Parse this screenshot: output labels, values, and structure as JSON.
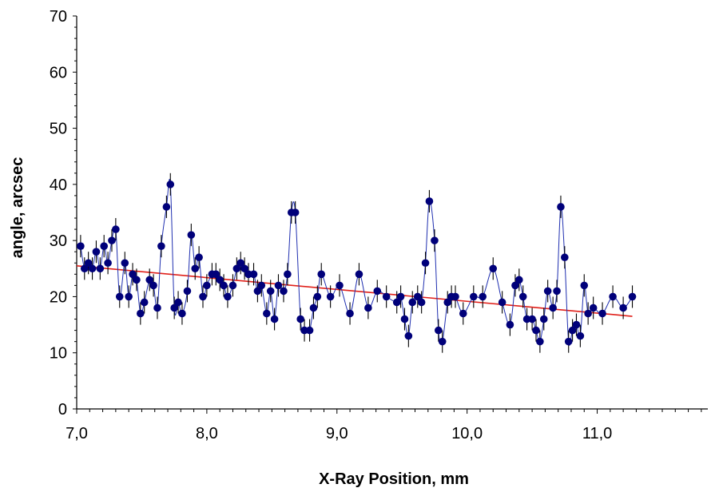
{
  "chart_data": {
    "type": "scatter",
    "title": "",
    "xlabel": "X-Ray Position, mm",
    "ylabel": "angle, arcsec",
    "xlim": [
      7.0,
      11.85
    ],
    "ylim": [
      0,
      70
    ],
    "x_ticks": [
      7.0,
      8.0,
      9.0,
      10.0,
      11.0
    ],
    "x_tick_labels": [
      "7,0",
      "8,0",
      "9,0",
      "10,0",
      "11,0"
    ],
    "y_ticks": [
      0,
      10,
      20,
      30,
      40,
      50,
      60,
      70
    ],
    "y_tick_labels": [
      "0",
      "10",
      "20",
      "30",
      "40",
      "50",
      "60",
      "70"
    ],
    "grid": false,
    "legend": "none",
    "error_bar": 2,
    "series": [
      {
        "style": "markers-with-errorbars-and-line",
        "marker_color": "#00007a",
        "line_color": "#1f2fb0",
        "points": [
          [
            7.03,
            29
          ],
          [
            7.06,
            25
          ],
          [
            7.09,
            26
          ],
          [
            7.12,
            25
          ],
          [
            7.15,
            28
          ],
          [
            7.18,
            25
          ],
          [
            7.21,
            29
          ],
          [
            7.24,
            26
          ],
          [
            7.27,
            30
          ],
          [
            7.3,
            32
          ],
          [
            7.33,
            20
          ],
          [
            7.37,
            26
          ],
          [
            7.4,
            20
          ],
          [
            7.43,
            24
          ],
          [
            7.46,
            23
          ],
          [
            7.49,
            17
          ],
          [
            7.52,
            19
          ],
          [
            7.56,
            23
          ],
          [
            7.59,
            22
          ],
          [
            7.62,
            18
          ],
          [
            7.65,
            29
          ],
          [
            7.69,
            36
          ],
          [
            7.72,
            40
          ],
          [
            7.75,
            18
          ],
          [
            7.78,
            19
          ],
          [
            7.81,
            17
          ],
          [
            7.85,
            21
          ],
          [
            7.88,
            31
          ],
          [
            7.91,
            25
          ],
          [
            7.94,
            27
          ],
          [
            7.97,
            20
          ],
          [
            8.0,
            22
          ],
          [
            8.04,
            24
          ],
          [
            8.07,
            24
          ],
          [
            8.1,
            23
          ],
          [
            8.13,
            22
          ],
          [
            8.16,
            20
          ],
          [
            8.2,
            22
          ],
          [
            8.23,
            25
          ],
          [
            8.26,
            26
          ],
          [
            8.29,
            25
          ],
          [
            8.32,
            24
          ],
          [
            8.36,
            24
          ],
          [
            8.39,
            21
          ],
          [
            8.42,
            22
          ],
          [
            8.46,
            17
          ],
          [
            8.49,
            21
          ],
          [
            8.52,
            16
          ],
          [
            8.55,
            22
          ],
          [
            8.59,
            21
          ],
          [
            8.62,
            24
          ],
          [
            8.65,
            35
          ],
          [
            8.68,
            35
          ],
          [
            8.72,
            16
          ],
          [
            8.75,
            14
          ],
          [
            8.79,
            14
          ],
          [
            8.82,
            18
          ],
          [
            8.85,
            20
          ],
          [
            8.88,
            24
          ],
          [
            8.95,
            20
          ],
          [
            9.02,
            22
          ],
          [
            9.1,
            17
          ],
          [
            9.17,
            24
          ],
          [
            9.24,
            18
          ],
          [
            9.31,
            21
          ],
          [
            9.38,
            20
          ],
          [
            9.46,
            19
          ],
          [
            9.49,
            20
          ],
          [
            9.52,
            16
          ],
          [
            9.55,
            13
          ],
          [
            9.58,
            19
          ],
          [
            9.62,
            20
          ],
          [
            9.65,
            19
          ],
          [
            9.68,
            26
          ],
          [
            9.71,
            37
          ],
          [
            9.75,
            30
          ],
          [
            9.78,
            14
          ],
          [
            9.81,
            12
          ],
          [
            9.85,
            19
          ],
          [
            9.88,
            20
          ],
          [
            9.91,
            20
          ],
          [
            9.97,
            17
          ],
          [
            10.05,
            20
          ],
          [
            10.12,
            20
          ],
          [
            10.2,
            25
          ],
          [
            10.27,
            19
          ],
          [
            10.33,
            15
          ],
          [
            10.37,
            22
          ],
          [
            10.4,
            23
          ],
          [
            10.43,
            20
          ],
          [
            10.46,
            16
          ],
          [
            10.5,
            16
          ],
          [
            10.53,
            14
          ],
          [
            10.56,
            12
          ],
          [
            10.59,
            16
          ],
          [
            10.62,
            21
          ],
          [
            10.66,
            18
          ],
          [
            10.69,
            21
          ],
          [
            10.72,
            36
          ],
          [
            10.75,
            27
          ],
          [
            10.78,
            12
          ],
          [
            10.81,
            14
          ],
          [
            10.84,
            15
          ],
          [
            10.87,
            13
          ],
          [
            10.9,
            22
          ],
          [
            10.93,
            17
          ],
          [
            10.97,
            18
          ],
          [
            11.04,
            17
          ],
          [
            11.12,
            20
          ],
          [
            11.2,
            18
          ],
          [
            11.27,
            20
          ]
        ]
      },
      {
        "style": "trend-line",
        "line_color": "#e0201a",
        "x": [
          7.0,
          11.27
        ],
        "y": [
          25.5,
          16.5
        ]
      }
    ]
  }
}
